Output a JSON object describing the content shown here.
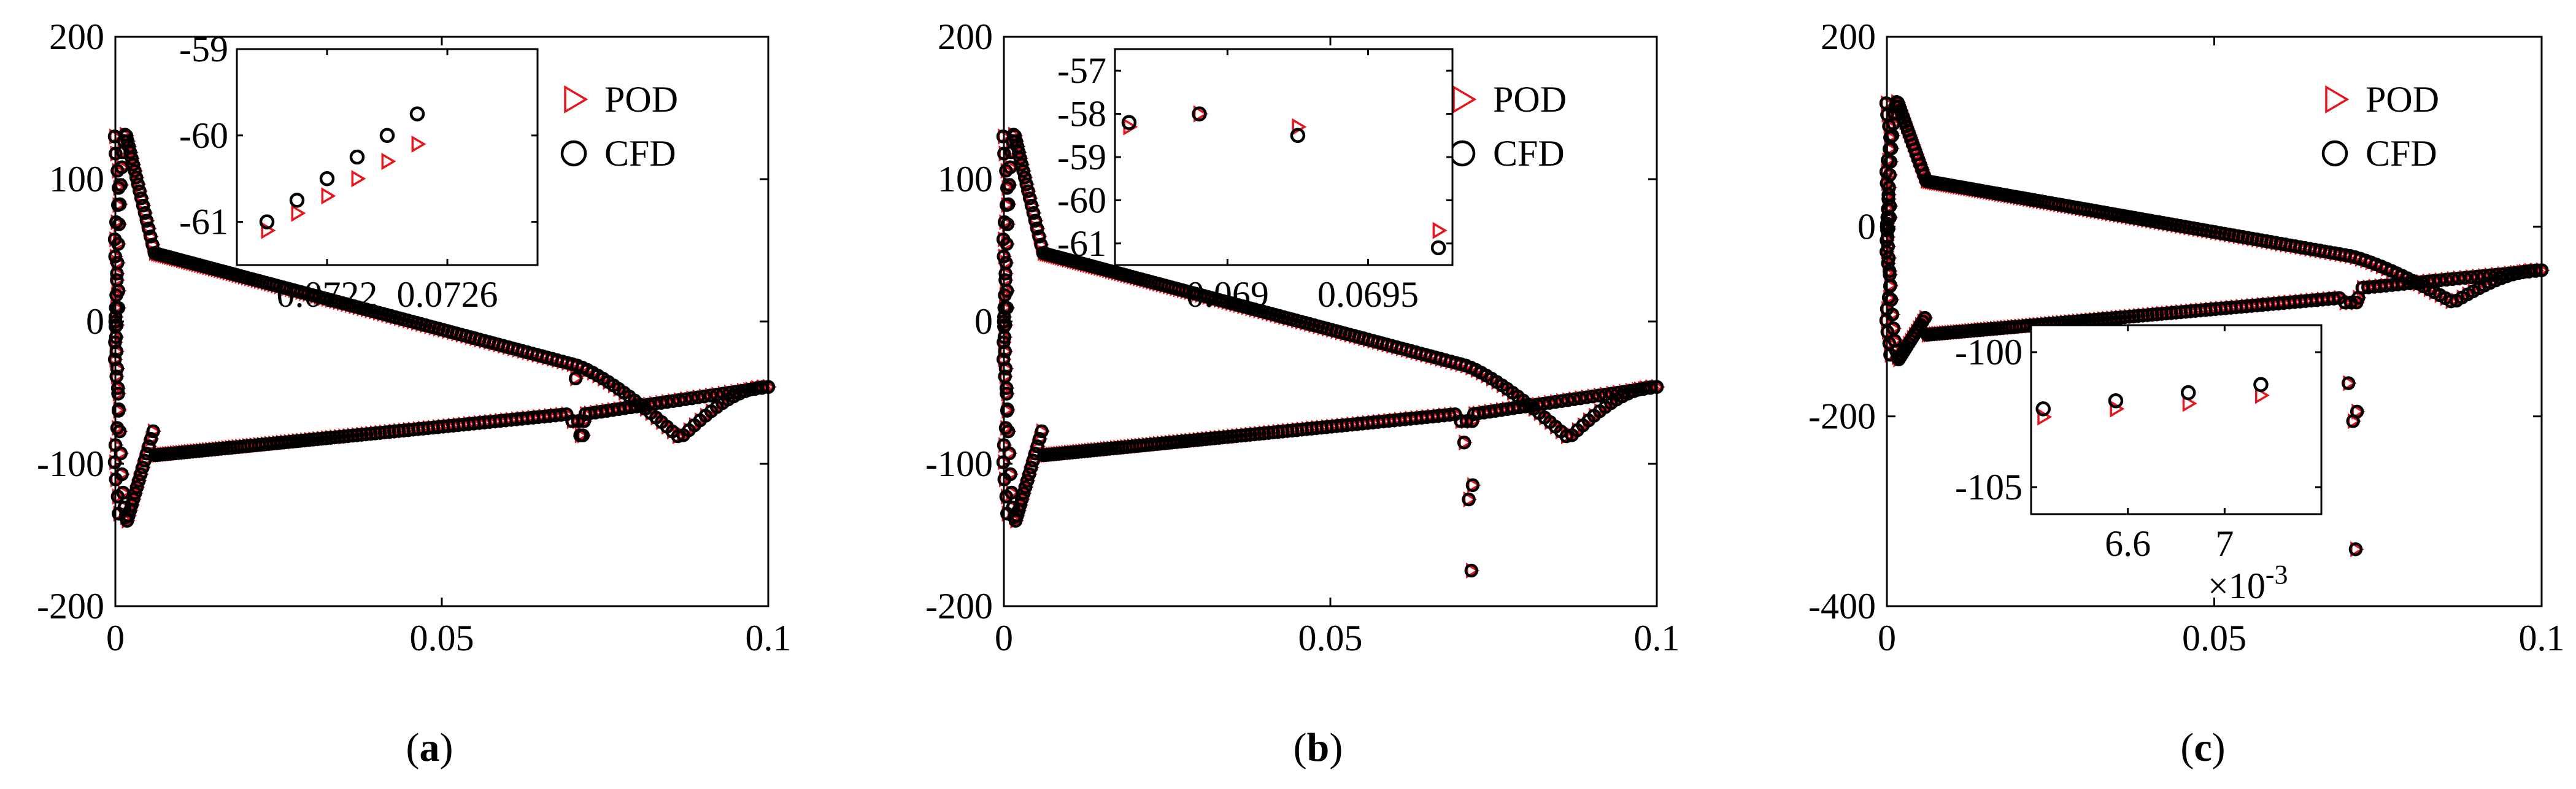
{
  "chart_data": [
    {
      "id": "a",
      "type": "scatter",
      "caption": {
        "open": "(",
        "letter": "a",
        "close": ")"
      },
      "xlim": [
        0,
        0.1
      ],
      "ylim": [
        -200,
        200
      ],
      "xticks": [
        0,
        0.05,
        0.1
      ],
      "xtick_labels": [
        "0",
        "0.05",
        "0.1"
      ],
      "yticks": [
        -200,
        -100,
        0,
        100,
        200
      ],
      "ytick_labels": [
        "-200",
        "-100",
        "0",
        "100",
        "200"
      ],
      "legend": {
        "position": "top-right",
        "entries": [
          {
            "name": "POD",
            "marker": "triangle",
            "color": "#e8141c"
          },
          {
            "name": "CFD",
            "marker": "circle",
            "color": "#000000"
          }
        ]
      },
      "shape": {
        "lower_end": -80,
        "lower_mid": -65,
        "dip_y": -80,
        "dip_x": 0.0715,
        "upper_min_x": 0.0865,
        "upper_min_y": -82,
        "notch_y": -80
      },
      "inset": {
        "xlim": [
          0.0719,
          0.0729
        ],
        "ylim": [
          -61.5,
          -59
        ],
        "xticks": [
          0.0722,
          0.0726
        ],
        "xtick_labels": [
          "0.0722",
          "0.0726"
        ],
        "yticks": [
          -61,
          -60,
          -59
        ],
        "ytick_labels": [
          "-61",
          "-60",
          "-59"
        ],
        "series": [
          {
            "name": "POD",
            "x": [
              0.072,
              0.0721,
              0.0722,
              0.0723,
              0.0724,
              0.0725
            ],
            "y": [
              -61.1,
              -60.9,
              -60.7,
              -60.5,
              -60.3,
              -60.1
            ]
          },
          {
            "name": "CFD",
            "x": [
              0.072,
              0.0721,
              0.0722,
              0.0723,
              0.0724,
              0.0725
            ],
            "y": [
              -61.0,
              -60.75,
              -60.5,
              -60.25,
              -60.0,
              -59.75
            ]
          }
        ]
      }
    },
    {
      "id": "b",
      "type": "scatter",
      "caption": {
        "open": "(",
        "letter": "b",
        "close": ")"
      },
      "xlim": [
        0,
        0.1
      ],
      "ylim": [
        -200,
        200
      ],
      "xticks": [
        0,
        0.05,
        0.1
      ],
      "xtick_labels": [
        "0",
        "0.05",
        "0.1"
      ],
      "yticks": [
        -200,
        -100,
        0,
        100,
        200
      ],
      "ytick_labels": [
        "-200",
        "-100",
        "0",
        "100",
        "200"
      ],
      "legend": {
        "position": "top-right",
        "entries": [
          {
            "name": "POD",
            "marker": "triangle",
            "color": "#e8141c"
          },
          {
            "name": "CFD",
            "marker": "circle",
            "color": "#000000"
          }
        ]
      },
      "shape": {
        "lower_end": -80,
        "lower_mid": -65,
        "dip_y": -175,
        "dip_x": 0.0715,
        "upper_min_x": 0.0865,
        "upper_min_y": -82,
        "notch_y": -125
      },
      "inset": {
        "xlim": [
          0.0686,
          0.0698
        ],
        "ylim": [
          -61.5,
          -56.5
        ],
        "xticks": [
          0.069,
          0.0695
        ],
        "xtick_labels": [
          "0.069",
          "0.0695"
        ],
        "yticks": [
          -61,
          -60,
          -59,
          -58,
          -57
        ],
        "ytick_labels": [
          "-61",
          "-60",
          "-59",
          "-58",
          "-57"
        ],
        "series": [
          {
            "name": "POD",
            "x": [
              0.06865,
              0.0689,
              0.06925,
              0.06975
            ],
            "y": [
              -58.3,
              -58.0,
              -58.3,
              -60.7
            ]
          },
          {
            "name": "CFD",
            "x": [
              0.06865,
              0.0689,
              0.06925,
              0.06975
            ],
            "y": [
              -58.2,
              -58.0,
              -58.5,
              -61.1
            ]
          }
        ]
      }
    },
    {
      "id": "c",
      "type": "scatter",
      "caption": {
        "open": "(",
        "letter": "c",
        "close": ")"
      },
      "xlim": [
        0,
        0.1
      ],
      "ylim": [
        -400,
        200
      ],
      "xticks": [
        0,
        0.05,
        0.1
      ],
      "xtick_labels": [
        "0",
        "0.05",
        "0.1"
      ],
      "yticks": [
        -400,
        -200,
        0,
        200
      ],
      "ytick_labels": [
        "-400",
        "-200",
        "0",
        "200"
      ],
      "legend": {
        "position": "top-right",
        "entries": [
          {
            "name": "POD",
            "marker": "triangle",
            "color": "#e8141c"
          },
          {
            "name": "CFD",
            "marker": "circle",
            "color": "#000000"
          }
        ]
      },
      "shape": {
        "lower_end": -100,
        "lower_mid": -75,
        "dip_y": -340,
        "dip_x": 0.0715,
        "upper_min_x": 0.0865,
        "upper_min_y": -80,
        "notch_y": -205
      },
      "inset": {
        "xlim": [
          0.0062,
          0.0074
        ],
        "ylim": [
          -106,
          -99
        ],
        "xticks": [
          0.0066,
          0.007
        ],
        "xtick_labels": [
          "6.6",
          "7"
        ],
        "yticks": [
          -105,
          -100
        ],
        "ytick_labels": [
          "-105",
          "-100"
        ],
        "exponent_base": "×10",
        "exponent_power": "-3",
        "series": [
          {
            "name": "POD",
            "x": [
              0.00625,
              0.00655,
              0.00685,
              0.00715
            ],
            "y": [
              -102.4,
              -102.1,
              -101.9,
              -101.6
            ]
          },
          {
            "name": "CFD",
            "x": [
              0.00625,
              0.00655,
              0.00685,
              0.00715
            ],
            "y": [
              -102.1,
              -101.8,
              -101.5,
              -101.2
            ]
          }
        ]
      }
    }
  ]
}
